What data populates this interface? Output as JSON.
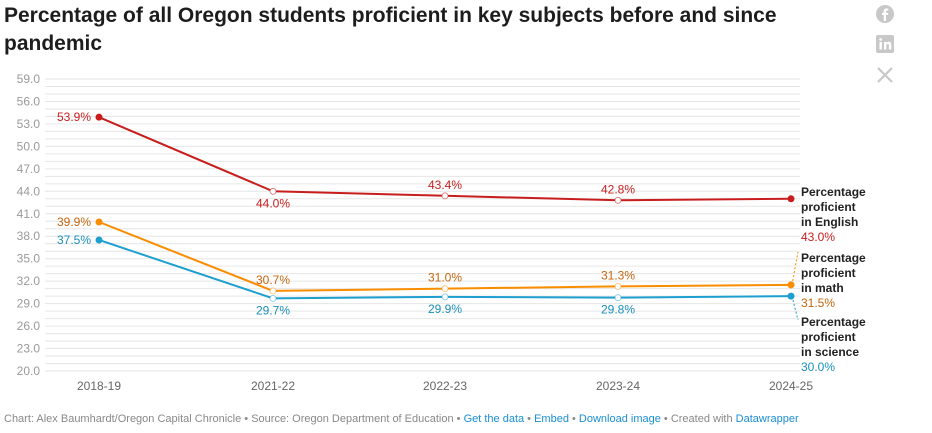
{
  "chart_data": {
    "type": "line",
    "title": "Percentage of all Oregon students proficient in key subjects before and since pandemic",
    "categories": [
      "2018-19",
      "2021-22",
      "2022-23",
      "2023-24",
      "2024-25"
    ],
    "ylim": [
      20,
      59
    ],
    "yticks": [
      "20.0",
      "23.0",
      "26.0",
      "29.0",
      "32.0",
      "35.0",
      "38.0",
      "41.0",
      "44.0",
      "47.0",
      "50.0",
      "53.0",
      "56.0",
      "59.0"
    ],
    "grid": true,
    "series": [
      {
        "name": "Percentage proficient in English",
        "color": "#c71e1d",
        "label_color": "#c71e1d",
        "values": [
          53.9,
          44.0,
          43.4,
          42.8,
          43.0
        ],
        "labels": [
          "53.9%",
          "44.0%",
          "43.4%",
          "42.8%",
          "43.0%"
        ]
      },
      {
        "name": "Percentage proficient in math",
        "color": "#fa8c00",
        "label_color": "#c4650e",
        "values": [
          39.9,
          30.7,
          31.0,
          31.3,
          31.5
        ],
        "labels": [
          "39.9%",
          "30.7%",
          "31.0%",
          "31.3%",
          "31.5%"
        ]
      },
      {
        "name": "Percentage proficient in science",
        "color": "#1d9fd0",
        "label_color": "#1a8fbb",
        "values": [
          37.5,
          29.7,
          29.9,
          29.8,
          30.0
        ],
        "labels": [
          "37.5%",
          "29.7%",
          "29.9%",
          "29.8%",
          "30.0%"
        ]
      }
    ]
  },
  "social": [
    "facebook-icon",
    "linkedin-icon",
    "x-icon"
  ],
  "footer": {
    "credit": "Chart: Alex Baumhardt/Oregon Capital Chronicle",
    "source": "Source: Oregon Department of Education",
    "get_data": "Get the data",
    "embed": "Embed",
    "download": "Download image",
    "created": "Created with",
    "datawrapper": "Datawrapper",
    "sep": " • "
  }
}
